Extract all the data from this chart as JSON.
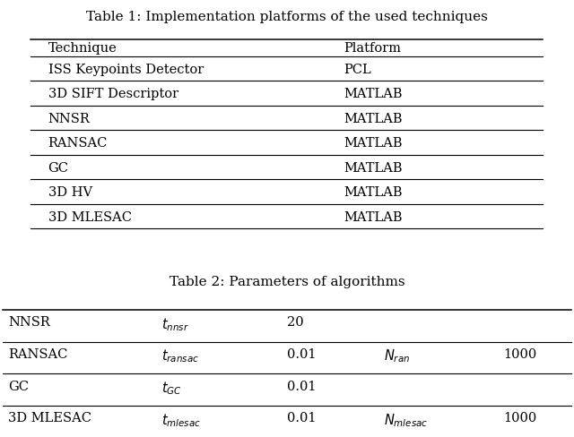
{
  "table1_title": "Table 1: Implementation platforms of the used techniques",
  "table1_headers": [
    "Technique",
    "Platform"
  ],
  "table1_rows": [
    [
      "ISS Keypoints Detector",
      "PCL"
    ],
    [
      "3D SIFT Descriptor",
      "MATLAB"
    ],
    [
      "NNSR",
      "MATLAB"
    ],
    [
      "RANSAC",
      "MATLAB"
    ],
    [
      "GC",
      "MATLAB"
    ],
    [
      "3D HV",
      "MATLAB"
    ],
    [
      "3D MLESAC",
      "MATLAB"
    ]
  ],
  "table2_title": "Table 2: Parameters of algorithms",
  "table2_rows": [
    [
      "NNSR",
      "$t_{nnsr}$",
      "20",
      "",
      ""
    ],
    [
      "RANSAC",
      "$t_{ransac}$",
      "0.01",
      "$N_{ran}$",
      "1000"
    ],
    [
      "GC",
      "$t_{GC}$",
      "0.01",
      "",
      ""
    ],
    [
      "3D MLESAC",
      "$t_{mlesac}$",
      "0.01",
      "$N_{mlesac}$",
      "1000"
    ]
  ],
  "bg_color": "#ffffff",
  "text_color": "#000000",
  "title_fontsize": 11,
  "body_fontsize": 10.5,
  "line_color": "#000000"
}
